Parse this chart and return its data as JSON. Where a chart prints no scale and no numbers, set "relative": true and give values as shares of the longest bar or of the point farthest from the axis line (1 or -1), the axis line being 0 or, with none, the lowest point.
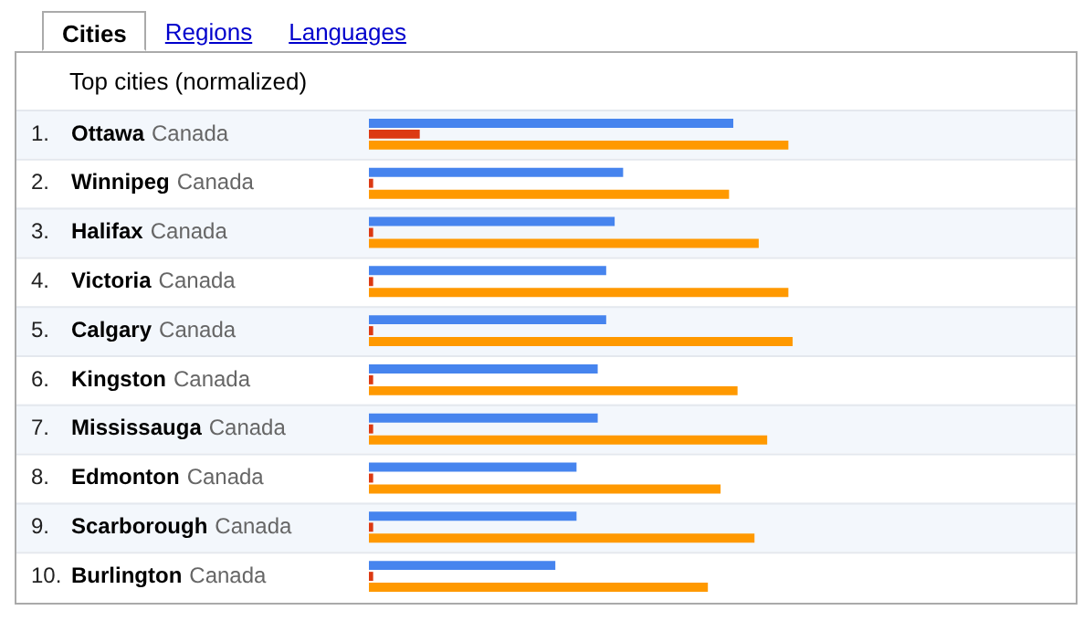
{
  "chart_data": {
    "type": "bar",
    "orientation": "horizontal",
    "relative": true,
    "title": "Top cities (normalized)",
    "annotations": [
      "Cities",
      "Regions",
      "Languages"
    ],
    "categories": [
      "1. Ottawa Canada",
      "2. Winnipeg Canada",
      "3. Halifax Canada",
      "4. Victoria Canada",
      "5. Calgary Canada",
      "6. Kingston Canada",
      "7. Mississauga Canada",
      "8. Edmonton Canada",
      "9. Scarborough Canada",
      "10. Burlington Canada"
    ],
    "series": [
      {
        "color": "#4684ee",
        "values": [
          0.86,
          0.6,
          0.58,
          0.56,
          0.56,
          0.54,
          0.54,
          0.49,
          0.49,
          0.44
        ]
      },
      {
        "color": "#dc3912",
        "values": [
          0.12,
          0.01,
          0.01,
          0.01,
          0.01,
          0.01,
          0.01,
          0.01,
          0.01,
          0.01
        ]
      },
      {
        "color": "#ff9900",
        "values": [
          0.99,
          0.85,
          0.92,
          0.99,
          1,
          0.87,
          0.94,
          0.83,
          0.91,
          0.8
        ]
      }
    ],
    "legend": false
  }
}
